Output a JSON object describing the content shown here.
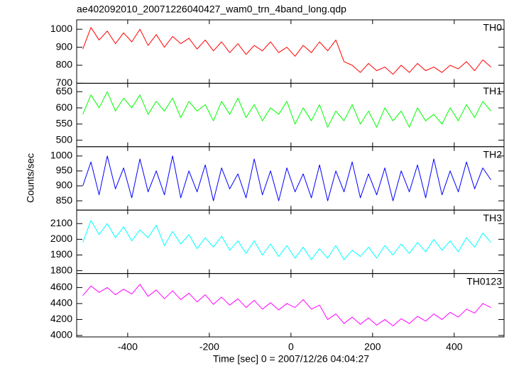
{
  "chart_data": {
    "type": "line",
    "title": "ae402092010_20071226040427_wam0_trn_4band_long.qdp",
    "xlabel": "Time [sec] 0 = 2007/12/26 04:04:27",
    "ylabel": "Counts/sec",
    "xlim": [
      -525,
      522
    ],
    "xticks": [
      -400,
      -200,
      0,
      200,
      400
    ],
    "x": [
      -510,
      -490,
      -470,
      -450,
      -430,
      -410,
      -390,
      -370,
      -350,
      -330,
      -310,
      -290,
      -270,
      -250,
      -230,
      -210,
      -190,
      -170,
      -150,
      -130,
      -110,
      -90,
      -70,
      -50,
      -30,
      -10,
      10,
      30,
      50,
      70,
      90,
      110,
      130,
      150,
      170,
      190,
      210,
      230,
      250,
      270,
      290,
      310,
      330,
      350,
      370,
      390,
      410,
      430,
      450,
      470,
      490
    ],
    "series": [
      {
        "name": "TH0",
        "color": "#ff0000",
        "ylim": [
          700,
          1052
        ],
        "yticks": [
          700,
          800,
          900,
          1000
        ],
        "values": [
          890,
          1010,
          940,
          990,
          920,
          980,
          930,
          1000,
          910,
          970,
          900,
          960,
          920,
          950,
          890,
          940,
          880,
          930,
          870,
          920,
          860,
          910,
          880,
          930,
          870,
          900,
          850,
          910,
          870,
          930,
          880,
          940,
          820,
          800,
          760,
          810,
          770,
          790,
          750,
          800,
          760,
          810,
          770,
          790,
          760,
          800,
          780,
          820,
          770,
          830,
          790
        ]
      },
      {
        "name": "TH1",
        "color": "#00ff00",
        "ylim": [
          480,
          676
        ],
        "yticks": [
          500,
          550,
          600,
          650
        ],
        "values": [
          580,
          640,
          600,
          650,
          590,
          630,
          600,
          640,
          580,
          620,
          590,
          630,
          570,
          620,
          590,
          610,
          560,
          620,
          580,
          630,
          570,
          610,
          560,
          600,
          580,
          620,
          550,
          600,
          560,
          610,
          540,
          590,
          560,
          610,
          550,
          590,
          540,
          600,
          560,
          590,
          540,
          600,
          560,
          580,
          550,
          600,
          560,
          610,
          570,
          620,
          590
        ]
      },
      {
        "name": "TH2",
        "color": "#0000ff",
        "ylim": [
          819,
          1031
        ],
        "yticks": [
          850,
          900,
          950,
          1000
        ],
        "values": [
          900,
          980,
          870,
          1000,
          890,
          960,
          860,
          990,
          880,
          950,
          870,
          1000,
          860,
          950,
          880,
          970,
          850,
          960,
          890,
          940,
          860,
          990,
          870,
          950,
          850,
          960,
          880,
          940,
          860,
          970,
          850,
          950,
          880,
          980,
          860,
          940,
          870,
          960,
          850,
          950,
          880,
          970,
          860,
          990,
          870,
          950,
          880,
          980,
          890,
          960,
          920
        ]
      },
      {
        "name": "TH3",
        "color": "#00ffff",
        "ylim": [
          1782,
          2186
        ],
        "yticks": [
          1800,
          1900,
          2000,
          2100
        ],
        "values": [
          1980,
          2120,
          2030,
          2100,
          2010,
          2080,
          1990,
          2060,
          2010,
          2090,
          1960,
          2050,
          1970,
          2030,
          1940,
          2010,
          1950,
          2020,
          1930,
          1990,
          1910,
          1990,
          1900,
          1970,
          1890,
          1960,
          1880,
          1950,
          1870,
          1940,
          1880,
          1960,
          1870,
          1930,
          1890,
          1950,
          1880,
          1960,
          1900,
          1970,
          1910,
          1980,
          1920,
          2000,
          1930,
          1990,
          1920,
          2010,
          1950,
          2040,
          1980
        ]
      },
      {
        "name": "TH0123",
        "color": "#ff00ff",
        "ylim": [
          3982,
          4776
        ],
        "yticks": [
          4000,
          4200,
          4400,
          4600
        ],
        "values": [
          4500,
          4620,
          4540,
          4600,
          4510,
          4580,
          4520,
          4640,
          4490,
          4570,
          4460,
          4560,
          4450,
          4530,
          4420,
          4510,
          4390,
          4480,
          4380,
          4460,
          4350,
          4440,
          4330,
          4410,
          4320,
          4400,
          4350,
          4450,
          4330,
          4380,
          4200,
          4270,
          4150,
          4230,
          4140,
          4220,
          4130,
          4200,
          4120,
          4210,
          4150,
          4240,
          4180,
          4270,
          4200,
          4290,
          4230,
          4330,
          4280,
          4400,
          4350
        ]
      }
    ]
  }
}
